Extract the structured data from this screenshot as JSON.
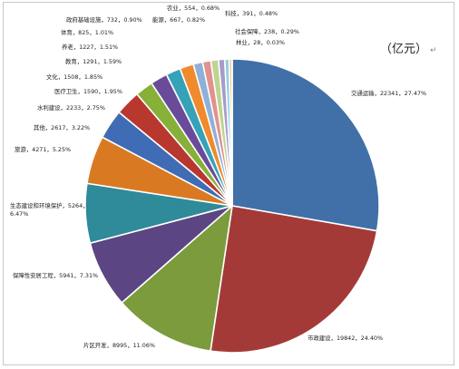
{
  "chart_data": {
    "type": "pie",
    "unit_label": "（亿元）",
    "unit_mark": "↵",
    "slices": [
      {
        "name": "交通运输",
        "value": 22341,
        "pct": "27.47%",
        "color": "#4170a8"
      },
      {
        "name": "市政建设",
        "value": 19842,
        "pct": "24.40%",
        "color": "#a43a38"
      },
      {
        "name": "片区开发",
        "value": 8995,
        "pct": "11.06%",
        "color": "#7b9b3c"
      },
      {
        "name": "保障性安居工程",
        "value": 5941,
        "pct": "7.31%",
        "color": "#5b4582"
      },
      {
        "name": "生态建设和环境保护",
        "value": 5264,
        "pct": "6.47%",
        "color": "#2f8a9a"
      },
      {
        "name": "旅游",
        "value": 4271,
        "pct": "5.25%",
        "color": "#d97a23"
      },
      {
        "name": "其他",
        "value": 2617,
        "pct": "3.22%",
        "color": "#3f6cb4"
      },
      {
        "name": "水利建设",
        "value": 2233,
        "pct": "2.75%",
        "color": "#b8372f"
      },
      {
        "name": "医疗卫生",
        "value": 1590,
        "pct": "1.95%",
        "color": "#86b038"
      },
      {
        "name": "文化",
        "value": 1508,
        "pct": "1.85%",
        "color": "#6a4b9a"
      },
      {
        "name": "教育",
        "value": 1291,
        "pct": "1.59%",
        "color": "#35a2b8"
      },
      {
        "name": "养老",
        "value": 1227,
        "pct": "1.51%",
        "color": "#f08a2c"
      },
      {
        "name": "体育",
        "value": 825,
        "pct": "1.01%",
        "color": "#8fb0d8"
      },
      {
        "name": "政府基础设施",
        "value": 732,
        "pct": "0.90%",
        "color": "#e2918f"
      },
      {
        "name": "能源",
        "value": 667,
        "pct": "0.82%",
        "color": "#bcd58f"
      },
      {
        "name": "农业",
        "value": 554,
        "pct": "0.68%",
        "color": "#a99bc8"
      },
      {
        "name": "科技",
        "value": 391,
        "pct": "0.48%",
        "color": "#8fd0df"
      },
      {
        "name": "社会保障",
        "value": 238,
        "pct": "0.29%",
        "color": "#f6b679"
      },
      {
        "name": "林业",
        "value": 28,
        "pct": "0.03%",
        "color": "#c9d6ea"
      }
    ],
    "label_texts": [
      "交通运输，22341，27.47%",
      "市政建设，19842，24.40%",
      "片区开发，8995，11.06%",
      "保障性安居工程，5941，7.31%",
      "生态建设和环境保护，5264，",
      "6.47%",
      "旅游，4271，5.25%",
      "其他，2617，3.22%",
      "水利建设，2233，2.75%",
      "医疗卫生，1590，1.95%",
      "文化，1508，1.85%",
      "教育，1291，1.59%",
      "养老，1227，1.51%",
      "体育，825，1.01%",
      "政府基础设施，732，0.90%",
      "能源，667，0.82%",
      "农业，554，0.68%",
      "科技，391，0.48%",
      "社会保障，238，0.29%",
      "林业，28，0.03%"
    ],
    "legend": "none",
    "grid": false
  }
}
